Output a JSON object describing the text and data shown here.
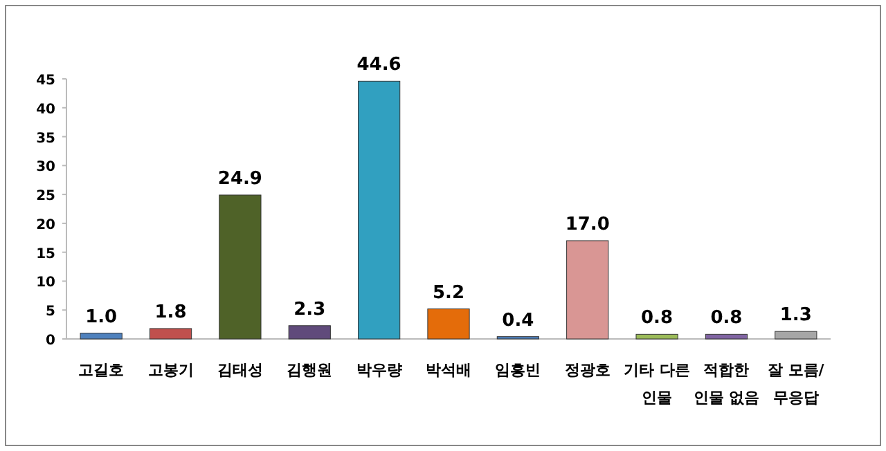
{
  "chart_data": {
    "type": "bar",
    "categories": [
      "고길호",
      "고봉기",
      "김태성",
      "김행원",
      "박우량",
      "박석배",
      "임흥빈",
      "정광호",
      "기타 다른 인물",
      "적합한 인물 없음",
      "잘 모름/무응답"
    ],
    "values": [
      1.0,
      1.8,
      24.9,
      2.3,
      44.6,
      5.2,
      0.4,
      17.0,
      0.8,
      0.8,
      1.3
    ],
    "value_labels": [
      "1.0",
      "1.8",
      "24.9",
      "2.3",
      "44.6",
      "5.2",
      "0.4",
      "17.0",
      "0.8",
      "0.8",
      "1.3"
    ],
    "colors": [
      "#4f81bd",
      "#c0504d",
      "#4f6228",
      "#604a7b",
      "#31a0c0",
      "#e46c0a",
      "#4f81bd",
      "#d99694",
      "#9bbb59",
      "#8064a2",
      "#a6a6a6"
    ],
    "ylim": [
      0,
      45
    ],
    "yticks": [
      0,
      5,
      10,
      15,
      20,
      25,
      30,
      35,
      40,
      45
    ],
    "grid": false
  }
}
